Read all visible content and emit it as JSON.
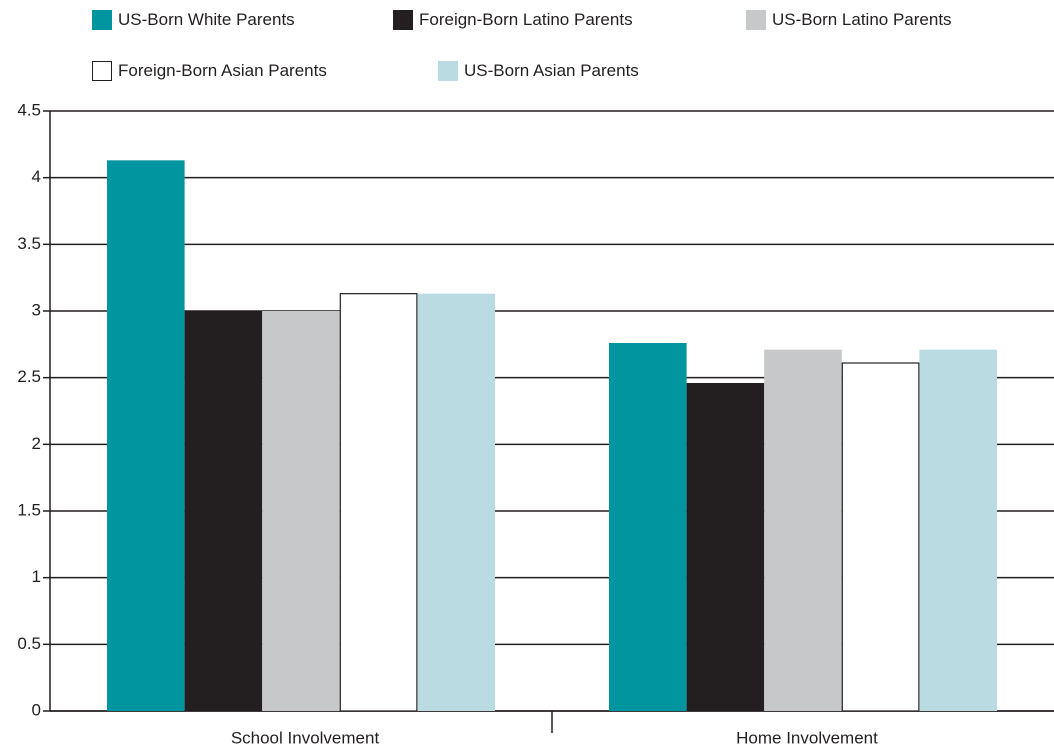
{
  "chart_data": {
    "type": "bar",
    "categories": [
      "School Involvement",
      "Home Involvement"
    ],
    "series": [
      {
        "name": "US-Born White Parents",
        "color": "#00959f",
        "values": [
          4.13,
          2.76
        ]
      },
      {
        "name": "Foreign-Born Latino Parents",
        "color": "#231f20",
        "values": [
          3.0,
          2.46
        ]
      },
      {
        "name": "US-Born Latino Parents",
        "color": "#c7c8ca",
        "values": [
          3.0,
          2.71
        ]
      },
      {
        "name": "Foreign-Born Asian Parents",
        "color": "#ffffff",
        "values": [
          3.13,
          2.61
        ]
      },
      {
        "name": "US-Born Asian Parents",
        "color": "#badbe2",
        "values": [
          3.13,
          2.71
        ]
      }
    ],
    "ylim": [
      0,
      4.5
    ],
    "yticks": [
      "0",
      "0.5",
      "1",
      "1.5",
      "2",
      "2.5",
      "3",
      "3.5",
      "4",
      "4.5"
    ],
    "grid": true,
    "legend_position": "top",
    "xlabel": "",
    "ylabel": ""
  }
}
